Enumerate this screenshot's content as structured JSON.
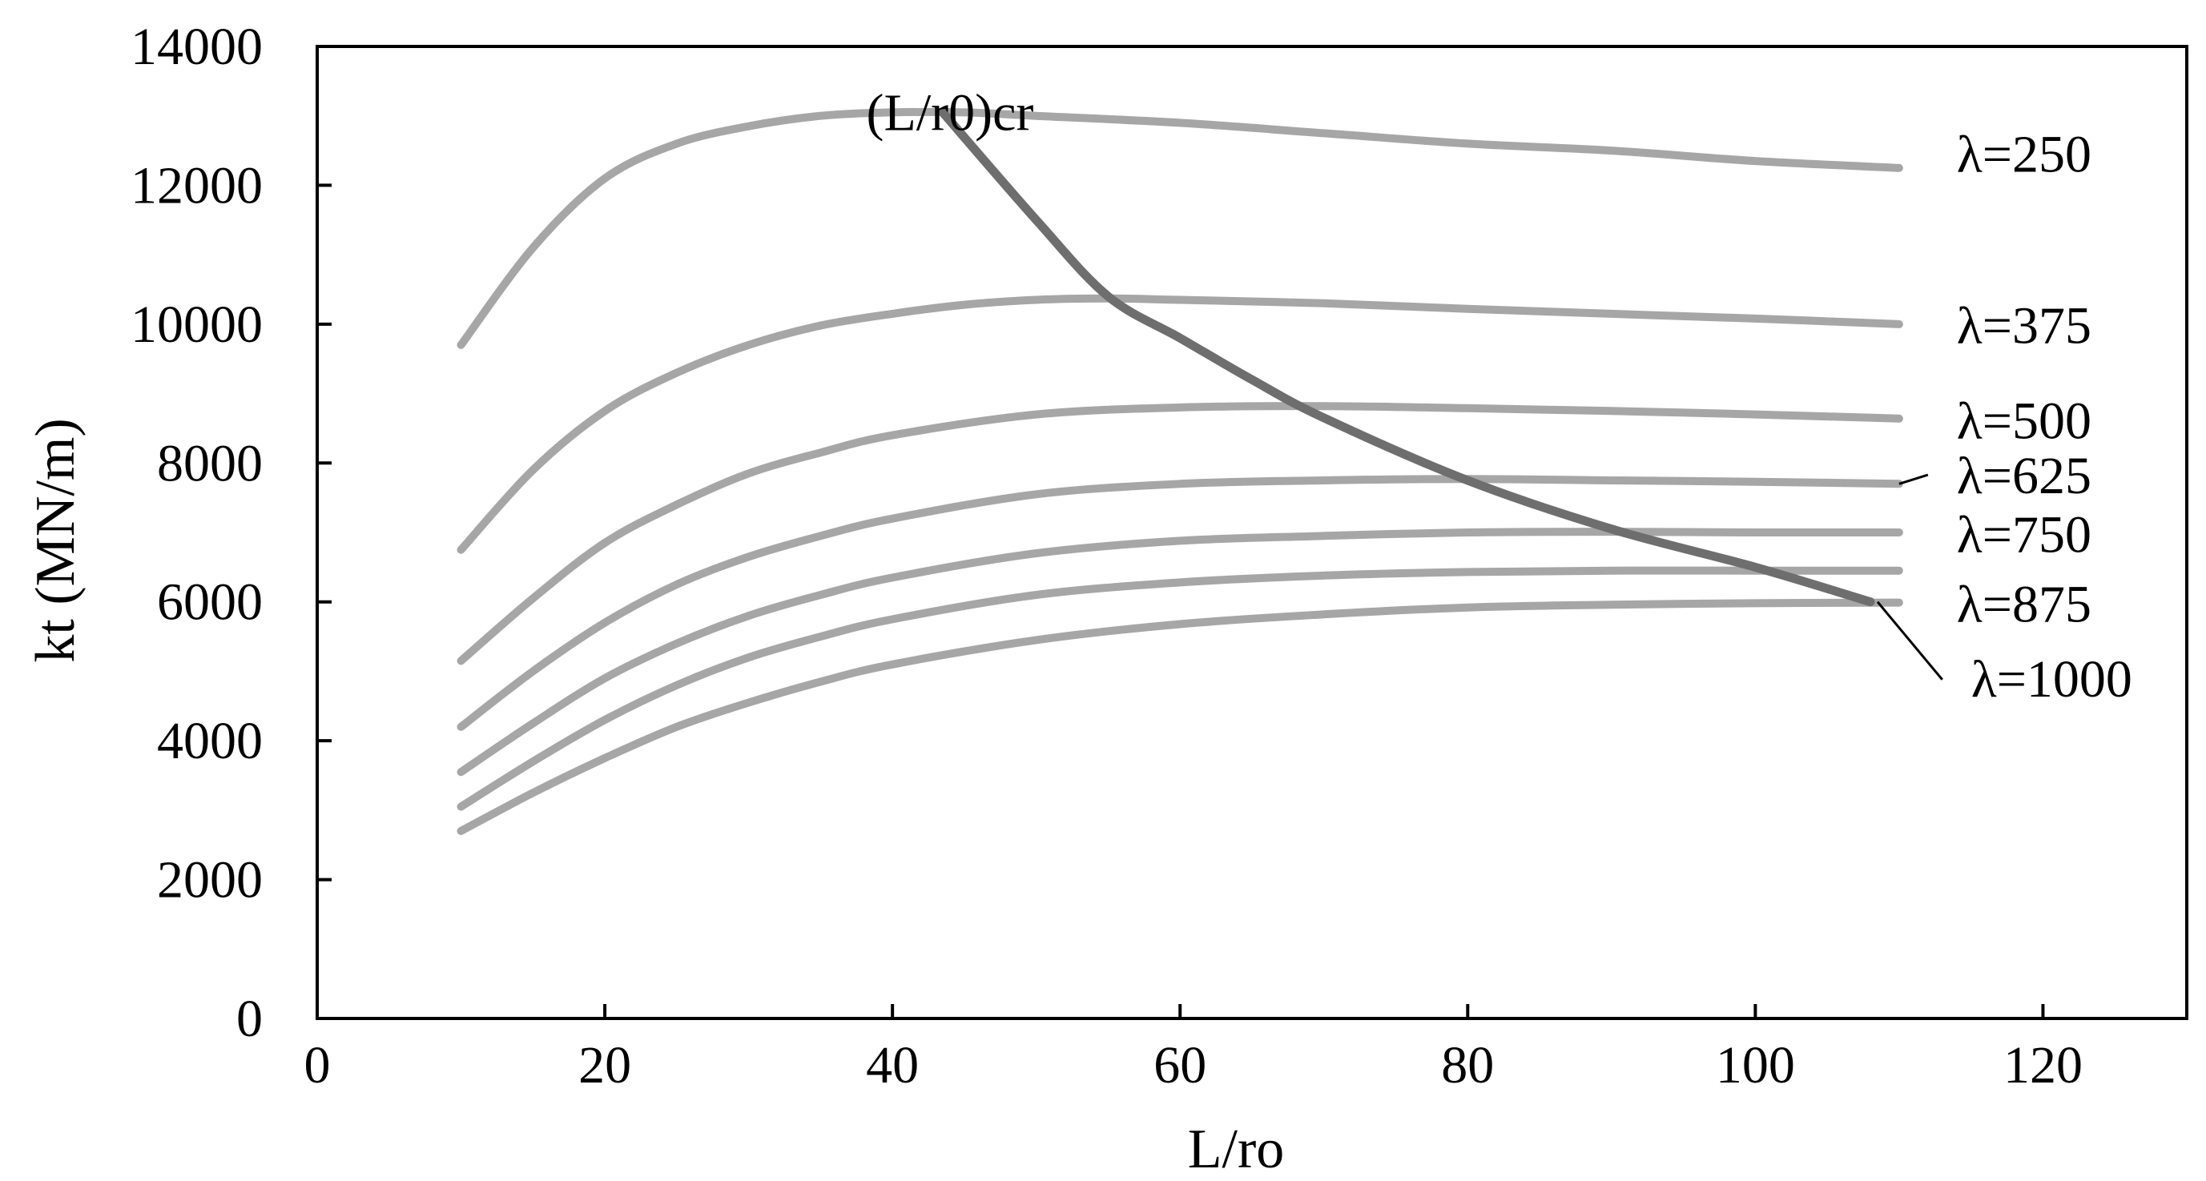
{
  "chart_data": {
    "type": "line",
    "xlabel": "L/ro",
    "ylabel": "kt (MN/m)",
    "xlim": [
      0,
      130
    ],
    "ylim": [
      0,
      14000
    ],
    "xticks": [
      0,
      20,
      40,
      60,
      80,
      100,
      120
    ],
    "yticks": [
      0,
      2000,
      4000,
      6000,
      8000,
      10000,
      12000,
      14000
    ],
    "grid": false,
    "series": [
      {
        "name": "λ=250",
        "color": "#a6a6a6",
        "x": [
          10,
          15,
          20,
          25,
          30,
          35,
          40,
          45,
          50,
          60,
          70,
          80,
          90,
          100,
          110
        ],
        "y": [
          9700,
          11100,
          12100,
          12600,
          12850,
          13000,
          13050,
          13050,
          13000,
          12900,
          12750,
          12600,
          12500,
          12350,
          12250
        ]
      },
      {
        "name": "λ=375",
        "color": "#a6a6a6",
        "x": [
          10,
          15,
          20,
          25,
          30,
          35,
          40,
          45,
          50,
          55,
          60,
          70,
          80,
          90,
          100,
          110
        ],
        "y": [
          6750,
          7900,
          8750,
          9300,
          9700,
          9980,
          10150,
          10280,
          10350,
          10370,
          10350,
          10300,
          10220,
          10150,
          10080,
          10000
        ]
      },
      {
        "name": "λ=500",
        "color": "#a6a6a6",
        "x": [
          10,
          15,
          20,
          25,
          30,
          35,
          40,
          50,
          60,
          70,
          80,
          90,
          100,
          110
        ],
        "y": [
          5150,
          6050,
          6850,
          7400,
          7850,
          8150,
          8400,
          8700,
          8800,
          8820,
          8790,
          8750,
          8700,
          8640
        ]
      },
      {
        "name": "λ=625",
        "color": "#a6a6a6",
        "x": [
          10,
          15,
          20,
          25,
          30,
          35,
          40,
          50,
          60,
          70,
          80,
          90,
          100,
          110
        ],
        "y": [
          4200,
          5000,
          5700,
          6250,
          6650,
          6950,
          7200,
          7550,
          7700,
          7750,
          7770,
          7750,
          7730,
          7700
        ]
      },
      {
        "name": "λ=750",
        "color": "#a6a6a6",
        "x": [
          10,
          15,
          20,
          25,
          30,
          35,
          40,
          50,
          60,
          70,
          80,
          90,
          100,
          110
        ],
        "y": [
          3550,
          4250,
          4900,
          5400,
          5800,
          6100,
          6350,
          6700,
          6880,
          6950,
          7000,
          7010,
          7000,
          7000
        ]
      },
      {
        "name": "λ=875",
        "color": "#a6a6a6",
        "x": [
          10,
          15,
          20,
          25,
          30,
          35,
          40,
          50,
          60,
          70,
          80,
          90,
          100,
          110
        ],
        "y": [
          3050,
          3700,
          4300,
          4800,
          5200,
          5500,
          5750,
          6100,
          6280,
          6380,
          6430,
          6450,
          6450,
          6450
        ]
      },
      {
        "name": "λ=1000",
        "color": "#a6a6a6",
        "x": [
          10,
          15,
          20,
          25,
          30,
          35,
          40,
          50,
          60,
          70,
          80,
          90,
          100,
          110
        ],
        "y": [
          2700,
          3250,
          3750,
          4200,
          4550,
          4850,
          5100,
          5450,
          5680,
          5820,
          5920,
          5960,
          5980,
          5990
        ]
      },
      {
        "name": "(L/r0)cr",
        "color": "#6e6e6e",
        "x": [
          43.5,
          50,
          55,
          60,
          65,
          70,
          80,
          90,
          100,
          108
        ],
        "y": [
          13050,
          11500,
          10400,
          9800,
          9200,
          8650,
          7750,
          7050,
          6500,
          6000
        ]
      }
    ],
    "labels": [
      {
        "text": "(L/r0)cr",
        "x": 44,
        "y": 13050,
        "anchor": "middle",
        "leader": false
      },
      {
        "text": "λ=250",
        "x": 114,
        "y": 12450,
        "anchor": "start",
        "leader": false
      },
      {
        "text": "λ=375",
        "x": 114,
        "y": 9980,
        "anchor": "start",
        "leader": false
      },
      {
        "text": "λ=500",
        "x": 114,
        "y": 8610,
        "anchor": "start",
        "leader": false
      },
      {
        "text": "λ=625",
        "x": 114,
        "y": 7820,
        "anchor": "start",
        "leader": true,
        "from": [
          110,
          7700
        ],
        "to": [
          112,
          7830
        ]
      },
      {
        "text": "λ=750",
        "x": 114,
        "y": 6970,
        "anchor": "start",
        "leader": false
      },
      {
        "text": "λ=875",
        "x": 114,
        "y": 5970,
        "anchor": "start",
        "leader": false
      },
      {
        "text": "λ=1000",
        "x": 115,
        "y": 4890,
        "anchor": "start",
        "leader": true,
        "from": [
          108.5,
          6000
        ],
        "to": [
          113,
          4880
        ]
      }
    ]
  }
}
